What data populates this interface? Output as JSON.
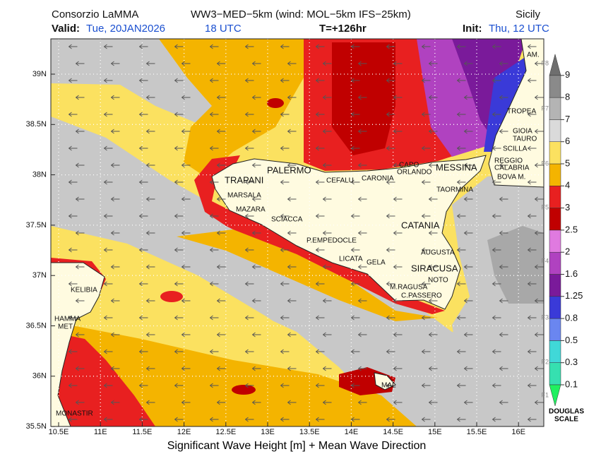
{
  "header": {
    "source": "Consorzio LaMMA",
    "model": "WW3−MED−5km (wind: MOL−5km IFS−25km)",
    "region": "Sicily",
    "valid_label": "Valid:",
    "valid_date": "Tue, 20JAN2026",
    "valid_hour": "18 UTC",
    "lead": "T=+126hr",
    "init_label": "Init:",
    "init_value": "Thu, 12 UTC"
  },
  "map": {
    "lat_ticks": [
      "39N",
      "38.5N",
      "38N",
      "37.5N",
      "37N",
      "36.5N",
      "36N",
      "35.5N"
    ],
    "lon_ticks": [
      "10.5E",
      "11E",
      "11.5E",
      "12E",
      "12.5E",
      "13E",
      "13.5E",
      "14E",
      "14.5E",
      "15E",
      "15.5E",
      "16E"
    ],
    "places": [
      "AM.",
      "TROPEA",
      "GIOIA",
      "TAURO",
      "SCILLA",
      "REGGIO",
      "CALABRIA",
      "BOVA M.",
      "MESSINA",
      "CAPO",
      "ORLANDO",
      "CARONIA",
      "CEFALU",
      "PALERMO",
      "TRAPANI",
      "MARSALA",
      "MAZARA",
      "SCIACCA",
      "P.EMPEDOCLE",
      "LICATA",
      "GELA",
      "TAORMINA",
      "CATANIA",
      "AUGUSTA",
      "SIRACUSA",
      "NOTO",
      "M.RAGUSA",
      "C.PASSERO",
      "KELIBIA",
      "HAMMA",
      "MET",
      "MONASTIR",
      "MAL"
    ]
  },
  "colorbar": {
    "levels": [
      0.1,
      0.3,
      0.5,
      0.8,
      1.25,
      1.6,
      2,
      2.5,
      3,
      4,
      5,
      6,
      7,
      8,
      9
    ],
    "colors": [
      "#36e0b0",
      "#40d8d8",
      "#6a86f0",
      "#3a3ad8",
      "#7a1a9a",
      "#b042c0",
      "#e07ae0",
      "#c00000",
      "#e82020",
      "#f4b400",
      "#fbe160",
      "#dadada",
      "#b4b4b4",
      "#8a8a8a"
    ],
    "below_color": "#20f060",
    "above_color": "#6e6e6e",
    "douglas": [
      "F1",
      "F2",
      "F3",
      "F4",
      "F5",
      "F6",
      "F7",
      "F8"
    ],
    "scale_name": [
      "DOUGLAS",
      "SCALE"
    ]
  },
  "footer": "Significant Wave Height [m] + Mean Wave Direction"
}
